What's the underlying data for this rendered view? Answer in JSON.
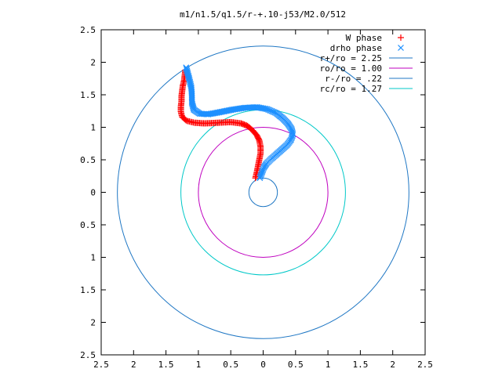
{
  "chart_data": {
    "type": "scatter",
    "title": "m1/n1.5/q1.5/r-+.10-j53/M2.0/512",
    "xlabel": "",
    "ylabel": "",
    "xlim": [
      -2.5,
      2.5
    ],
    "ylim": [
      -2.5,
      2.5
    ],
    "x_tick_labels": [
      "2.5",
      "2",
      "1.5",
      "1",
      "0.5",
      "0",
      "0.5",
      "1",
      "1.5",
      "2",
      "2.5"
    ],
    "y_tick_labels": [
      "2.5",
      "2",
      "1.5",
      "1",
      "0.5",
      "0",
      "0.5",
      "1",
      "1.5",
      "2",
      "2.5"
    ],
    "grid": false,
    "legend_position": "top-right",
    "series": [
      {
        "name": "W phase",
        "kind": "points",
        "marker": "plus",
        "color": "#ff0000",
        "points": [
          [
            -0.12,
            0.22
          ],
          [
            -0.1,
            0.3
          ],
          [
            -0.08,
            0.4
          ],
          [
            -0.06,
            0.5
          ],
          [
            -0.04,
            0.6
          ],
          [
            -0.04,
            0.7
          ],
          [
            -0.06,
            0.8
          ],
          [
            -0.1,
            0.88
          ],
          [
            -0.16,
            0.95
          ],
          [
            -0.24,
            1.02
          ],
          [
            -0.34,
            1.06
          ],
          [
            -0.5,
            1.08
          ],
          [
            -0.7,
            1.07
          ],
          [
            -0.9,
            1.06
          ],
          [
            -1.06,
            1.07
          ],
          [
            -1.18,
            1.1
          ],
          [
            -1.25,
            1.16
          ],
          [
            -1.27,
            1.24
          ],
          [
            -1.27,
            1.32
          ],
          [
            -1.26,
            1.4
          ],
          [
            -1.26,
            1.48
          ],
          [
            -1.25,
            1.56
          ],
          [
            -1.24,
            1.64
          ],
          [
            -1.22,
            1.72
          ],
          [
            -1.21,
            1.8
          ],
          [
            -1.2,
            1.88
          ]
        ]
      },
      {
        "name": "drho phase",
        "kind": "points",
        "marker": "cross",
        "color": "#1e90ff",
        "points": [
          [
            -0.05,
            0.22
          ],
          [
            -0.02,
            0.3
          ],
          [
            0.01,
            0.38
          ],
          [
            0.05,
            0.44
          ],
          [
            0.11,
            0.5
          ],
          [
            0.19,
            0.57
          ],
          [
            0.28,
            0.65
          ],
          [
            0.37,
            0.73
          ],
          [
            0.43,
            0.81
          ],
          [
            0.46,
            0.89
          ],
          [
            0.44,
            0.97
          ],
          [
            0.38,
            1.06
          ],
          [
            0.3,
            1.14
          ],
          [
            0.2,
            1.22
          ],
          [
            0.06,
            1.28
          ],
          [
            -0.1,
            1.31
          ],
          [
            -0.28,
            1.3
          ],
          [
            -0.48,
            1.27
          ],
          [
            -0.68,
            1.23
          ],
          [
            -0.85,
            1.2
          ],
          [
            -0.98,
            1.21
          ],
          [
            -1.07,
            1.27
          ],
          [
            -1.1,
            1.38
          ],
          [
            -1.1,
            1.5
          ],
          [
            -1.11,
            1.62
          ],
          [
            -1.14,
            1.74
          ],
          [
            -1.17,
            1.85
          ],
          [
            -1.19,
            1.92
          ]
        ]
      },
      {
        "name": "r+/ro = 2.25",
        "kind": "circle",
        "radius": 2.25,
        "color": "#1f77c4"
      },
      {
        "name": "ro/ro = 1.00",
        "kind": "circle",
        "radius": 1.0,
        "color": "#bf00bf"
      },
      {
        "name": "r-/ro = .22",
        "kind": "circle",
        "radius": 0.22,
        "color": "#1f77c4"
      },
      {
        "name": "rc/ro = 1.27",
        "kind": "circle",
        "radius": 1.27,
        "color": "#00c8c8"
      }
    ]
  }
}
